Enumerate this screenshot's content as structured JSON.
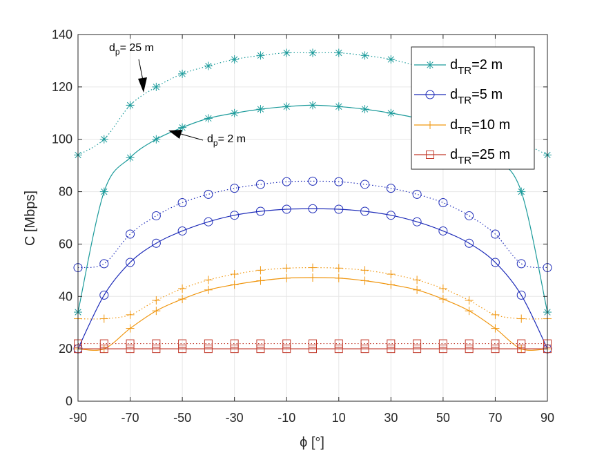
{
  "chart_data": {
    "type": "line",
    "xlabel": "ϕ [°]",
    "ylabel": "C [Mbps]",
    "xlim": [
      -90,
      90
    ],
    "ylim": [
      0,
      140
    ],
    "xticks": [
      -90,
      -70,
      -50,
      -30,
      -10,
      10,
      30,
      50,
      70,
      90
    ],
    "yticks": [
      0,
      20,
      40,
      60,
      80,
      100,
      120,
      140
    ],
    "grid": true,
    "legend_position": "top-right",
    "x": [
      -90,
      -80,
      -70,
      -60,
      -50,
      -40,
      -30,
      -20,
      -10,
      0,
      10,
      20,
      30,
      40,
      50,
      60,
      70,
      80,
      90
    ],
    "series": [
      {
        "name": "d_TR=2 m",
        "legend_main": "d",
        "legend_sub": "TR",
        "legend_rest": "=2 m",
        "color": "#1a9a9a",
        "marker": "asterisk",
        "solid": [
          34,
          80,
          93,
          100,
          104.5,
          108,
          110,
          111.5,
          112.5,
          113,
          112.5,
          111.5,
          110,
          108,
          104.5,
          100,
          93,
          80,
          34
        ],
        "dotted": [
          94,
          100,
          113,
          120,
          125,
          128,
          130.5,
          132,
          133,
          133,
          133,
          132,
          130.5,
          128,
          125,
          120,
          113,
          100,
          94
        ]
      },
      {
        "name": "d_TR=5 m",
        "legend_main": "d",
        "legend_sub": "TR",
        "legend_rest": "=5 m",
        "color": "#1c2ab8",
        "marker": "circle",
        "solid": [
          20,
          40.5,
          53,
          60.3,
          65,
          68.5,
          71,
          72.5,
          73.3,
          73.5,
          73.3,
          72.5,
          71,
          68.5,
          65,
          60.3,
          53,
          40.5,
          20
        ],
        "dotted": [
          51,
          52.5,
          63.8,
          70.8,
          75.8,
          79,
          81.3,
          82.8,
          83.8,
          84,
          83.8,
          82.8,
          81.3,
          79,
          75.8,
          70.8,
          63.8,
          52.5,
          51
        ]
      },
      {
        "name": "d_TR=10 m",
        "legend_main": "d",
        "legend_sub": "TR",
        "legend_rest": "=10 m",
        "color": "#f0960f",
        "marker": "plus",
        "solid": [
          20,
          20,
          27.8,
          34.5,
          39,
          42.5,
          44.5,
          46,
          47,
          47.2,
          47,
          46,
          44.5,
          42.5,
          39,
          34.5,
          27.8,
          20,
          20
        ],
        "dotted": [
          31.5,
          31.5,
          33,
          38.5,
          43,
          46.3,
          48.5,
          50,
          50.8,
          51,
          50.8,
          50,
          48.5,
          46.3,
          43,
          38.5,
          33,
          31.5,
          31.5
        ]
      },
      {
        "name": "d_TR=25 m",
        "legend_main": "d",
        "legend_sub": "TR",
        "legend_rest": "=25 m",
        "color": "#c23a2b",
        "marker": "square",
        "solid": [
          20,
          20,
          20,
          20,
          20,
          20,
          20,
          20,
          20,
          20,
          20,
          20,
          20,
          20,
          20,
          20,
          20,
          20,
          20
        ],
        "dotted": [
          22,
          22,
          22,
          22,
          22,
          22,
          22,
          22,
          22,
          22,
          22,
          22,
          22,
          22,
          22,
          22,
          22,
          22,
          22
        ]
      }
    ],
    "annotations": [
      {
        "main": "d",
        "sub": "p",
        "rest": "= 25 m"
      },
      {
        "main": "d",
        "sub": "p",
        "rest": "= 2 m"
      }
    ]
  }
}
